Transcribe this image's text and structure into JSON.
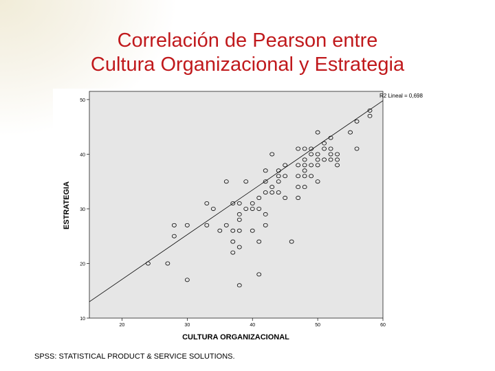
{
  "slide": {
    "title_line1": "Correlación de Pearson entre",
    "title_line2": "Cultura Organizacional y Estrategia",
    "footnote": "SPSS: STATISTICAL PRODUCT & SERVICE SOLUTIONS.",
    "title_color": "#c0191c"
  },
  "chart_data": {
    "type": "scatter",
    "title": "",
    "xlabel": "CULTURA ORGANIZACIONAL",
    "ylabel": "ESTRATEGIA",
    "xlim": [
      15,
      60
    ],
    "ylim": [
      10,
      51.5
    ],
    "xticks": [
      20,
      30,
      40,
      50,
      60
    ],
    "xtick_labels": [
      "20",
      "30",
      "40",
      "50",
      "60"
    ],
    "yticks": [
      10,
      20,
      30,
      40,
      50
    ],
    "ytick_labels": [
      "10",
      "20",
      "30",
      "40",
      "50"
    ],
    "fit_label": "R2 Lineal = 0,698",
    "fit_line": {
      "x": [
        15,
        60
      ],
      "y": [
        13,
        49.8
      ]
    },
    "plot_background": "#e6e6e6",
    "grid": false,
    "points": [
      [
        24,
        20
      ],
      [
        27,
        20
      ],
      [
        28,
        25
      ],
      [
        28,
        27
      ],
      [
        30,
        17
      ],
      [
        30,
        27
      ],
      [
        33,
        27
      ],
      [
        33,
        31
      ],
      [
        34,
        30
      ],
      [
        35,
        26
      ],
      [
        36,
        27
      ],
      [
        36,
        35
      ],
      [
        37,
        22
      ],
      [
        37,
        24
      ],
      [
        37,
        26
      ],
      [
        37,
        31
      ],
      [
        38,
        23
      ],
      [
        38,
        26
      ],
      [
        38,
        28
      ],
      [
        38,
        29
      ],
      [
        38,
        31
      ],
      [
        39,
        35
      ],
      [
        39,
        30
      ],
      [
        40,
        26
      ],
      [
        40,
        30
      ],
      [
        40,
        31
      ],
      [
        41,
        32
      ],
      [
        41,
        30
      ],
      [
        41,
        24
      ],
      [
        41,
        18
      ],
      [
        38,
        16
      ],
      [
        42,
        27
      ],
      [
        42,
        29
      ],
      [
        42,
        33
      ],
      [
        42,
        35
      ],
      [
        42,
        37
      ],
      [
        43,
        33
      ],
      [
        43,
        34
      ],
      [
        43,
        40
      ],
      [
        44,
        33
      ],
      [
        44,
        35
      ],
      [
        44,
        36
      ],
      [
        44,
        37
      ],
      [
        45,
        32
      ],
      [
        45,
        36
      ],
      [
        45,
        38
      ],
      [
        46,
        24
      ],
      [
        47,
        32
      ],
      [
        47,
        34
      ],
      [
        47,
        36
      ],
      [
        47,
        38
      ],
      [
        47,
        41
      ],
      [
        48,
        34
      ],
      [
        48,
        36
      ],
      [
        48,
        37
      ],
      [
        48,
        38
      ],
      [
        48,
        39
      ],
      [
        48,
        41
      ],
      [
        49,
        36
      ],
      [
        49,
        38
      ],
      [
        49,
        40
      ],
      [
        49,
        41
      ],
      [
        50,
        35
      ],
      [
        50,
        38
      ],
      [
        50,
        39
      ],
      [
        50,
        40
      ],
      [
        50,
        44
      ],
      [
        51,
        39
      ],
      [
        51,
        41
      ],
      [
        51,
        42
      ],
      [
        52,
        39
      ],
      [
        52,
        40
      ],
      [
        52,
        41
      ],
      [
        52,
        43
      ],
      [
        53,
        38
      ],
      [
        53,
        39
      ],
      [
        53,
        40
      ],
      [
        55,
        44
      ],
      [
        56,
        41
      ],
      [
        56,
        46
      ],
      [
        58,
        47
      ],
      [
        58,
        48
      ]
    ]
  }
}
